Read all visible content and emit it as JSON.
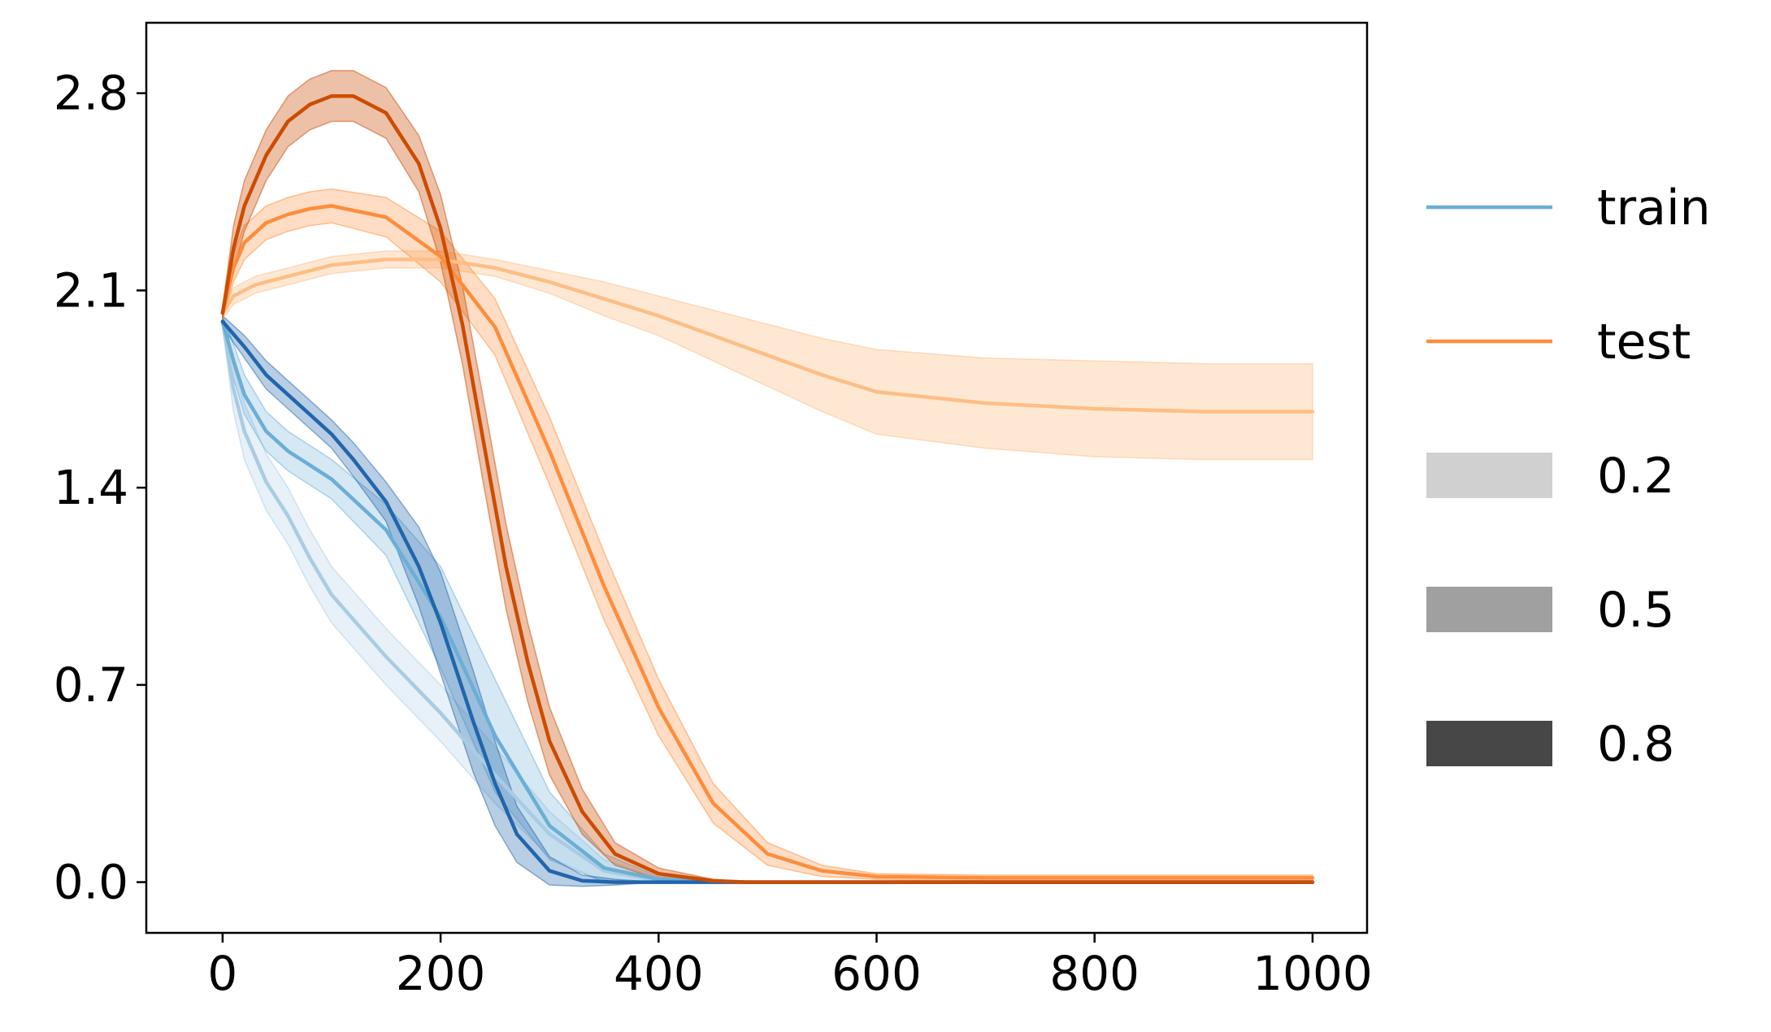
{
  "chart_data": {
    "type": "line",
    "title": "",
    "xlabel": "",
    "ylabel": "",
    "xlim": [
      -70,
      1050
    ],
    "ylim": [
      -0.18,
      3.05
    ],
    "xticks": [
      0,
      200,
      400,
      600,
      800,
      1000
    ],
    "xtick_labels": [
      "0",
      "200",
      "400",
      "600",
      "800",
      "1000"
    ],
    "yticks": [
      0.0,
      0.7,
      1.4,
      2.1,
      2.8
    ],
    "ytick_labels": [
      "0.0",
      "0.7",
      "1.4",
      "2.1",
      "2.8"
    ],
    "grid": false,
    "legend": {
      "placement": "right, outside plot",
      "entries": [
        {
          "label": "train",
          "kind": "line",
          "color": "#6baed6"
        },
        {
          "label": "test",
          "kind": "line",
          "color": "#fd8d3c"
        },
        {
          "label": "0.2",
          "kind": "patch",
          "color": "#d0d0d0"
        },
        {
          "label": "0.5",
          "kind": "patch",
          "color": "#a0a0a0"
        },
        {
          "label": "0.8",
          "kind": "patch",
          "color": "#474747"
        }
      ]
    },
    "series": [
      {
        "group": "train",
        "level": "0.2",
        "color": "#a9cce3",
        "band_opacity": 0.28,
        "x": [
          0,
          10,
          20,
          40,
          60,
          80,
          100,
          150,
          200,
          250,
          300,
          350,
          400,
          480,
          600,
          1000
        ],
        "y": [
          1.99,
          1.75,
          1.6,
          1.42,
          1.3,
          1.15,
          1.02,
          0.8,
          0.6,
          0.38,
          0.17,
          0.04,
          0.005,
          0.0,
          0.0,
          0.0
        ],
        "band": [
          0.02,
          0.08,
          0.1,
          0.1,
          0.1,
          0.1,
          0.1,
          0.1,
          0.1,
          0.1,
          0.08,
          0.04,
          0.01,
          0.0,
          0.0,
          0.0
        ]
      },
      {
        "group": "train",
        "level": "0.5",
        "color": "#6baed6",
        "band_opacity": 0.28,
        "x": [
          0,
          10,
          20,
          40,
          60,
          80,
          100,
          150,
          200,
          250,
          300,
          350,
          400,
          480,
          600,
          1000
        ],
        "y": [
          1.99,
          1.85,
          1.73,
          1.6,
          1.53,
          1.48,
          1.43,
          1.25,
          0.94,
          0.52,
          0.2,
          0.05,
          0.01,
          0.0,
          0.0,
          0.0
        ],
        "band": [
          0.02,
          0.06,
          0.07,
          0.07,
          0.07,
          0.07,
          0.07,
          0.09,
          0.18,
          0.2,
          0.12,
          0.05,
          0.01,
          0.0,
          0.0,
          0.0
        ]
      },
      {
        "group": "train",
        "level": "0.8",
        "color": "#2166ac",
        "band_opacity": 0.32,
        "x": [
          0,
          20,
          40,
          60,
          80,
          100,
          120,
          150,
          180,
          200,
          230,
          250,
          270,
          300,
          330,
          360,
          400,
          480,
          1000
        ],
        "y": [
          1.99,
          1.9,
          1.8,
          1.73,
          1.66,
          1.59,
          1.5,
          1.35,
          1.12,
          0.92,
          0.57,
          0.35,
          0.17,
          0.04,
          0.005,
          0.0,
          0.0,
          0.0,
          0.0
        ],
        "band": [
          0.02,
          0.04,
          0.05,
          0.05,
          0.05,
          0.05,
          0.06,
          0.07,
          0.14,
          0.18,
          0.18,
          0.15,
          0.1,
          0.05,
          0.02,
          0.01,
          0.0,
          0.0,
          0.0
        ]
      },
      {
        "group": "test",
        "level": "0.2",
        "color": "#fdbe85",
        "band_opacity": 0.35,
        "x": [
          0,
          10,
          30,
          60,
          100,
          150,
          200,
          250,
          300,
          350,
          400,
          450,
          500,
          550,
          600,
          700,
          800,
          900,
          1000
        ],
        "y": [
          2.02,
          2.08,
          2.12,
          2.15,
          2.19,
          2.21,
          2.21,
          2.18,
          2.13,
          2.07,
          2.01,
          1.94,
          1.87,
          1.8,
          1.74,
          1.7,
          1.68,
          1.67,
          1.67
        ],
        "band": [
          0.02,
          0.03,
          0.03,
          0.03,
          0.03,
          0.03,
          0.03,
          0.03,
          0.04,
          0.06,
          0.07,
          0.09,
          0.11,
          0.13,
          0.15,
          0.16,
          0.17,
          0.17,
          0.17
        ]
      },
      {
        "group": "test",
        "level": "0.5",
        "color": "#fd8d3c",
        "band_opacity": 0.3,
        "x": [
          0,
          10,
          20,
          40,
          60,
          80,
          100,
          150,
          200,
          250,
          300,
          350,
          400,
          450,
          500,
          550,
          600,
          700,
          800,
          1000
        ],
        "y": [
          2.02,
          2.18,
          2.27,
          2.34,
          2.37,
          2.39,
          2.4,
          2.36,
          2.22,
          1.97,
          1.53,
          1.05,
          0.62,
          0.28,
          0.1,
          0.04,
          0.02,
          0.015,
          0.015,
          0.015
        ],
        "band": [
          0.02,
          0.05,
          0.06,
          0.06,
          0.06,
          0.06,
          0.06,
          0.07,
          0.09,
          0.1,
          0.12,
          0.12,
          0.1,
          0.07,
          0.04,
          0.02,
          0.01,
          0.01,
          0.01,
          0.01
        ]
      },
      {
        "group": "test",
        "level": "0.8",
        "color": "#cc4c02",
        "band_opacity": 0.35,
        "x": [
          0,
          10,
          20,
          40,
          60,
          80,
          100,
          120,
          150,
          180,
          200,
          220,
          240,
          260,
          280,
          300,
          330,
          360,
          400,
          450,
          480,
          600,
          1000
        ],
        "y": [
          2.02,
          2.25,
          2.4,
          2.58,
          2.7,
          2.76,
          2.79,
          2.79,
          2.73,
          2.55,
          2.32,
          1.98,
          1.55,
          1.12,
          0.78,
          0.5,
          0.25,
          0.1,
          0.03,
          0.005,
          0.0,
          0.0,
          0.0
        ],
        "band": [
          0.02,
          0.08,
          0.09,
          0.09,
          0.09,
          0.09,
          0.09,
          0.09,
          0.09,
          0.1,
          0.12,
          0.14,
          0.15,
          0.15,
          0.14,
          0.12,
          0.08,
          0.04,
          0.02,
          0.005,
          0.0,
          0.0,
          0.0
        ]
      }
    ]
  }
}
